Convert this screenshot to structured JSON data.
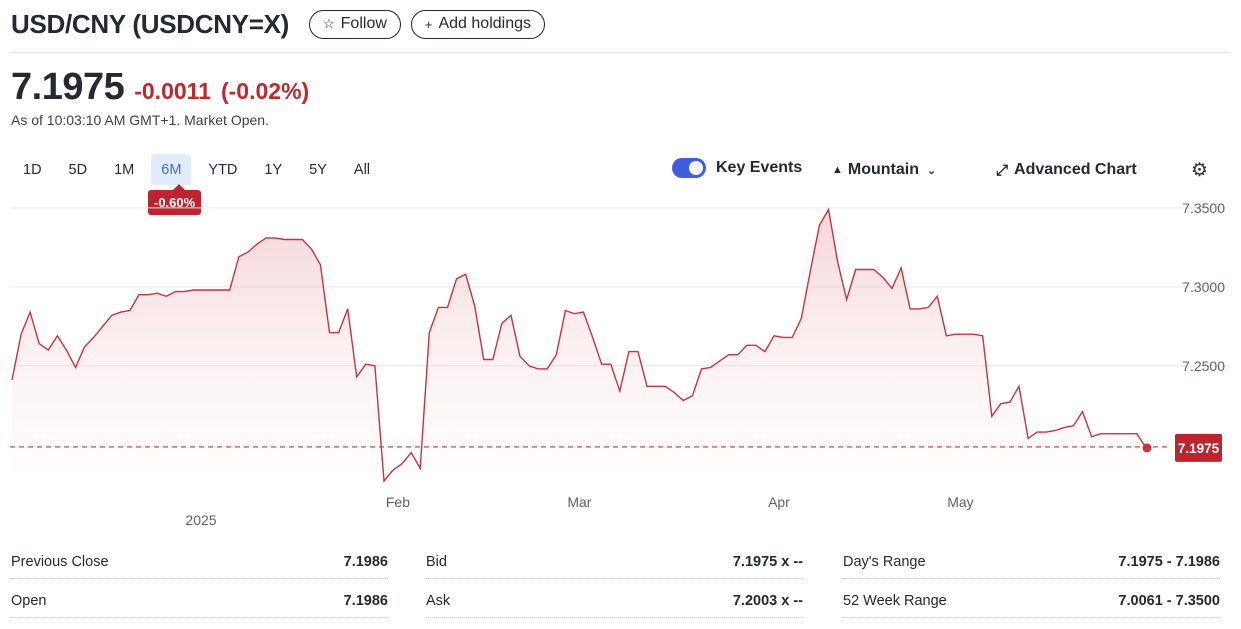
{
  "header": {
    "title": "USD/CNY (USDCNY=X)",
    "follow_label": "Follow",
    "add_holdings_label": "Add holdings"
  },
  "quote": {
    "price": "7.1975",
    "change": "-0.0011",
    "change_pct": "(-0.02%)",
    "as_of": "As of 10:03:10 AM GMT+1. Market Open."
  },
  "ranges": [
    "1D",
    "5D",
    "1M",
    "6M",
    "YTD",
    "1Y",
    "5Y",
    "All"
  ],
  "active_range": "6M",
  "range_performance": "-0.60%",
  "controls": {
    "key_events_label": "Key Events",
    "key_events_on": true,
    "chart_type_label": "Mountain",
    "advanced_chart_label": "Advanced Chart"
  },
  "colors": {
    "line": "#c8343a",
    "negative": "#c0282d",
    "accent": "#3d5ede"
  },
  "chart_data": {
    "type": "area",
    "y_ticks": [
      "7.3500",
      "7.3000",
      "7.2500"
    ],
    "ylim": [
      7.165,
      7.355
    ],
    "x_ticks": [
      "Feb",
      "Mar",
      "Apr",
      "May"
    ],
    "year_label": "2025",
    "previous_close": 7.1986,
    "last_value_label": "7.1975",
    "grid": true,
    "series": [
      {
        "values": [
          7.241,
          7.27,
          7.284,
          7.264,
          7.26,
          7.269,
          7.26,
          7.249,
          7.262,
          7.268,
          7.275,
          7.282,
          7.284,
          7.285,
          7.295,
          7.295,
          7.296,
          7.294,
          7.297,
          7.297,
          7.298,
          7.298,
          7.298,
          7.298,
          7.298,
          7.319,
          7.322,
          7.327,
          7.331,
          7.331,
          7.33,
          7.33,
          7.33,
          7.324,
          7.314,
          7.271,
          7.271,
          7.286,
          7.243,
          7.251,
          7.25,
          7.177,
          7.184,
          7.188,
          7.195,
          7.185,
          7.271,
          7.287,
          7.287,
          7.305,
          7.308,
          7.288,
          7.254,
          7.254,
          7.277,
          7.282,
          7.256,
          7.25,
          7.248,
          7.248,
          7.257,
          7.285,
          7.283,
          7.284,
          7.268,
          7.251,
          7.251,
          7.234,
          7.259,
          7.259,
          7.237,
          7.237,
          7.237,
          7.233,
          7.228,
          7.231,
          7.248,
          7.249,
          7.253,
          7.257,
          7.257,
          7.263,
          7.263,
          7.259,
          7.269,
          7.268,
          7.268,
          7.28,
          7.31,
          7.339,
          7.349,
          7.316,
          7.292,
          7.311,
          7.311,
          7.311,
          7.306,
          7.299,
          7.312,
          7.286,
          7.286,
          7.287,
          7.294,
          7.269,
          7.27,
          7.27,
          7.27,
          7.269,
          7.218,
          7.226,
          7.227,
          7.237,
          7.204,
          7.208,
          7.208,
          7.209,
          7.211,
          7.212,
          7.221,
          7.205,
          7.207,
          7.207,
          7.207,
          7.207,
          7.207,
          7.198
        ]
      }
    ]
  },
  "stats": [
    {
      "label": "Previous Close",
      "value": "7.1986"
    },
    {
      "label": "Bid",
      "value": "7.1975 x --"
    },
    {
      "label": "Day's Range",
      "value": "7.1975 - 7.1986"
    },
    {
      "label": "Open",
      "value": "7.1986"
    },
    {
      "label": "Ask",
      "value": "7.2003 x --"
    },
    {
      "label": "52 Week Range",
      "value": "7.0061 - 7.3500"
    }
  ]
}
